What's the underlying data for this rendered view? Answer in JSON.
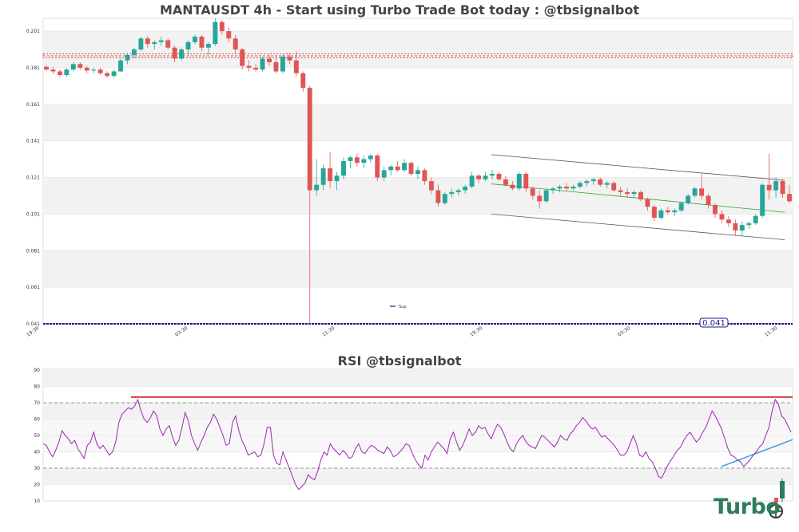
{
  "chart_data": [
    {
      "type": "candlestick",
      "title": "MANTAUSDT 4h - Start using Turbo Trade Bot today : @tbsignalbot",
      "y_ticks": [
        "0.201",
        "0.181",
        "0.161",
        "0.141",
        "0.121",
        "0.101",
        "0.081",
        "0.061",
        "0.041"
      ],
      "ylim": [
        0.041,
        0.208
      ],
      "x_ticks": [
        "19:30",
        "03:30",
        "11:30",
        "19:30",
        "03:30",
        "11:30"
      ],
      "grid": "horizontal bands",
      "legend": {
        "position": "bottom-center",
        "entries": [
          "Sup"
        ]
      },
      "price_label": "0.041",
      "resistance_level": 0.1875,
      "support_level": 0.041,
      "candles_ohlc": [
        [
          0.1815,
          0.1825,
          0.179,
          0.18
        ],
        [
          0.18,
          0.1815,
          0.1775,
          0.179
        ],
        [
          0.179,
          0.18,
          0.176,
          0.177
        ],
        [
          0.177,
          0.181,
          0.176,
          0.18
        ],
        [
          0.18,
          0.184,
          0.179,
          0.183
        ],
        [
          0.183,
          0.184,
          0.18,
          0.181
        ],
        [
          0.181,
          0.182,
          0.178,
          0.1795
        ],
        [
          0.1795,
          0.181,
          0.178,
          0.18
        ],
        [
          0.18,
          0.181,
          0.177,
          0.178
        ],
        [
          0.178,
          0.179,
          0.1755,
          0.1765
        ],
        [
          0.1765,
          0.18,
          0.1755,
          0.179
        ],
        [
          0.179,
          0.186,
          0.1785,
          0.185
        ],
        [
          0.185,
          0.189,
          0.183,
          0.188
        ],
        [
          0.188,
          0.192,
          0.186,
          0.191
        ],
        [
          0.191,
          0.198,
          0.19,
          0.197
        ],
        [
          0.197,
          0.1985,
          0.192,
          0.194
        ],
        [
          0.194,
          0.196,
          0.191,
          0.195
        ],
        [
          0.195,
          0.198,
          0.193,
          0.196
        ],
        [
          0.196,
          0.197,
          0.191,
          0.192
        ],
        [
          0.192,
          0.193,
          0.184,
          0.186
        ],
        [
          0.186,
          0.192,
          0.185,
          0.191
        ],
        [
          0.191,
          0.196,
          0.188,
          0.195
        ],
        [
          0.195,
          0.199,
          0.194,
          0.198
        ],
        [
          0.198,
          0.199,
          0.19,
          0.192
        ],
        [
          0.192,
          0.195,
          0.188,
          0.194
        ],
        [
          0.194,
          0.208,
          0.193,
          0.206
        ],
        [
          0.206,
          0.207,
          0.199,
          0.201
        ],
        [
          0.201,
          0.203,
          0.195,
          0.197
        ],
        [
          0.197,
          0.199,
          0.189,
          0.191
        ],
        [
          0.191,
          0.192,
          0.18,
          0.182
        ],
        [
          0.182,
          0.185,
          0.179,
          0.181
        ],
        [
          0.181,
          0.183,
          0.179,
          0.18
        ],
        [
          0.18,
          0.187,
          0.179,
          0.186
        ],
        [
          0.186,
          0.188,
          0.182,
          0.184
        ],
        [
          0.184,
          0.187,
          0.178,
          0.179
        ],
        [
          0.179,
          0.188,
          0.178,
          0.187
        ],
        [
          0.187,
          0.189,
          0.183,
          0.185
        ],
        [
          0.185,
          0.19,
          0.176,
          0.178
        ],
        [
          0.178,
          0.179,
          0.168,
          0.17
        ],
        [
          0.17,
          0.171,
          0.041,
          0.114
        ],
        [
          0.114,
          0.131,
          0.111,
          0.117
        ],
        [
          0.117,
          0.128,
          0.114,
          0.126
        ],
        [
          0.126,
          0.135,
          0.115,
          0.119
        ],
        [
          0.119,
          0.124,
          0.114,
          0.122
        ],
        [
          0.122,
          0.132,
          0.12,
          0.13
        ],
        [
          0.13,
          0.133,
          0.126,
          0.132
        ],
        [
          0.132,
          0.134,
          0.127,
          0.129
        ],
        [
          0.129,
          0.133,
          0.126,
          0.131
        ],
        [
          0.131,
          0.134,
          0.129,
          0.133
        ],
        [
          0.133,
          0.134,
          0.119,
          0.121
        ],
        [
          0.121,
          0.127,
          0.119,
          0.125
        ],
        [
          0.125,
          0.128,
          0.122,
          0.127
        ],
        [
          0.127,
          0.13,
          0.124,
          0.125
        ],
        [
          0.125,
          0.131,
          0.124,
          0.129
        ],
        [
          0.129,
          0.13,
          0.122,
          0.123
        ],
        [
          0.123,
          0.127,
          0.12,
          0.125
        ],
        [
          0.125,
          0.126,
          0.117,
          0.119
        ],
        [
          0.119,
          0.121,
          0.112,
          0.114
        ],
        [
          0.114,
          0.117,
          0.105,
          0.107
        ],
        [
          0.107,
          0.113,
          0.106,
          0.112
        ],
        [
          0.112,
          0.115,
          0.11,
          0.113
        ],
        [
          0.113,
          0.115,
          0.111,
          0.114
        ],
        [
          0.114,
          0.117,
          0.112,
          0.116
        ],
        [
          0.116,
          0.124,
          0.115,
          0.122
        ],
        [
          0.122,
          0.123,
          0.118,
          0.12
        ],
        [
          0.12,
          0.124,
          0.119,
          0.122
        ],
        [
          0.122,
          0.125,
          0.12,
          0.123
        ],
        [
          0.123,
          0.124,
          0.119,
          0.12
        ],
        [
          0.12,
          0.122,
          0.116,
          0.117
        ],
        [
          0.117,
          0.119,
          0.114,
          0.115
        ],
        [
          0.115,
          0.124,
          0.114,
          0.123
        ],
        [
          0.123,
          0.124,
          0.113,
          0.115
        ],
        [
          0.115,
          0.116,
          0.109,
          0.111
        ],
        [
          0.111,
          0.114,
          0.104,
          0.108
        ],
        [
          0.108,
          0.115,
          0.107,
          0.114
        ],
        [
          0.114,
          0.116,
          0.112,
          0.115
        ],
        [
          0.115,
          0.117,
          0.113,
          0.116
        ],
        [
          0.116,
          0.118,
          0.114,
          0.115
        ],
        [
          0.115,
          0.117,
          0.114,
          0.116
        ],
        [
          0.116,
          0.119,
          0.115,
          0.118
        ],
        [
          0.118,
          0.12,
          0.116,
          0.119
        ],
        [
          0.119,
          0.121,
          0.117,
          0.12
        ],
        [
          0.12,
          0.121,
          0.116,
          0.117
        ],
        [
          0.117,
          0.119,
          0.115,
          0.118
        ],
        [
          0.118,
          0.119,
          0.113,
          0.114
        ],
        [
          0.114,
          0.116,
          0.111,
          0.113
        ],
        [
          0.113,
          0.115,
          0.11,
          0.112
        ],
        [
          0.112,
          0.114,
          0.11,
          0.113
        ],
        [
          0.113,
          0.114,
          0.108,
          0.109
        ],
        [
          0.109,
          0.11,
          0.103,
          0.105
        ],
        [
          0.105,
          0.106,
          0.097,
          0.099
        ],
        [
          0.099,
          0.104,
          0.098,
          0.103
        ],
        [
          0.103,
          0.105,
          0.101,
          0.102
        ],
        [
          0.102,
          0.104,
          0.1,
          0.103
        ],
        [
          0.103,
          0.108,
          0.102,
          0.107
        ],
        [
          0.107,
          0.112,
          0.106,
          0.111
        ],
        [
          0.111,
          0.116,
          0.11,
          0.115
        ],
        [
          0.115,
          0.123,
          0.109,
          0.111
        ],
        [
          0.111,
          0.112,
          0.104,
          0.106
        ],
        [
          0.106,
          0.107,
          0.099,
          0.101
        ],
        [
          0.101,
          0.103,
          0.096,
          0.098
        ],
        [
          0.098,
          0.1,
          0.094,
          0.096
        ],
        [
          0.096,
          0.098,
          0.089,
          0.092
        ],
        [
          0.092,
          0.097,
          0.089,
          0.095
        ],
        [
          0.095,
          0.097,
          0.093,
          0.096
        ],
        [
          0.096,
          0.101,
          0.095,
          0.1
        ],
        [
          0.1,
          0.118,
          0.099,
          0.117
        ],
        [
          0.117,
          0.134,
          0.109,
          0.114
        ],
        [
          0.114,
          0.121,
          0.11,
          0.119
        ],
        [
          0.119,
          0.12,
          0.11,
          0.112
        ],
        [
          0.112,
          0.117,
          0.107,
          0.108
        ]
      ]
    },
    {
      "type": "line",
      "title": "RSI @tbsignalbot",
      "y_ticks": [
        "90",
        "80",
        "70",
        "60",
        "50",
        "40",
        "30",
        "20",
        "10"
      ],
      "ylim": [
        10,
        91
      ],
      "reference_lines": [
        70,
        30
      ],
      "series_color": "#9c27b0",
      "values": [
        45,
        44,
        40,
        37,
        41,
        46,
        53,
        50,
        48,
        45,
        47,
        42,
        39,
        36,
        44,
        46,
        52,
        45,
        42,
        44,
        41,
        38,
        40,
        46,
        58,
        63,
        65,
        67,
        66,
        68,
        72,
        65,
        60,
        58,
        61,
        65,
        62,
        54,
        50,
        54,
        56,
        49,
        44,
        47,
        55,
        64,
        59,
        50,
        45,
        41,
        46,
        50,
        55,
        58,
        63,
        60,
        55,
        50,
        44,
        45,
        58,
        62,
        53,
        47,
        43,
        38,
        39,
        40,
        37,
        38,
        45,
        55,
        55,
        38,
        33,
        32,
        40,
        35,
        30,
        25,
        20,
        17,
        19,
        21,
        26,
        24,
        23,
        28,
        35,
        40,
        38,
        45,
        42,
        40,
        38,
        41,
        39,
        36,
        37,
        42,
        45,
        40,
        39,
        42,
        44,
        43,
        41,
        40,
        39,
        43,
        41,
        37,
        38,
        40,
        42,
        45,
        44,
        39,
        35,
        32,
        30,
        38,
        35,
        40,
        43,
        46,
        44,
        42,
        39,
        48,
        52,
        46,
        41,
        44,
        49,
        54,
        50,
        52,
        56,
        54,
        55,
        51,
        48,
        53,
        57,
        55,
        51,
        46,
        42,
        40,
        45,
        48,
        50,
        46,
        44,
        43,
        42,
        46,
        50,
        49,
        47,
        45,
        43,
        46,
        50,
        48,
        47,
        51,
        53,
        56,
        58,
        61,
        59,
        56,
        54,
        55,
        52,
        49,
        50,
        48,
        46,
        44,
        41,
        38,
        38,
        40,
        45,
        50,
        45,
        38,
        37,
        40,
        36,
        34,
        30,
        25,
        24,
        28,
        32,
        35,
        38,
        41,
        43,
        47,
        50,
        52,
        49,
        46,
        48,
        52,
        55,
        60,
        65,
        62,
        58,
        54,
        48,
        42,
        38,
        37,
        35,
        34,
        31,
        33,
        35,
        38,
        40,
        43,
        45,
        50,
        55,
        65,
        72,
        69,
        62,
        60,
        56,
        52
      ]
    }
  ],
  "branding": {
    "logo_text": "Turbo"
  },
  "colors": {
    "up": "#26a69a",
    "down": "#e05555",
    "rsi": "#9c27b0",
    "resistance": "#d9534f",
    "support": "#1a1a8c",
    "channel": "#555555",
    "midline": "#2ca02c",
    "rsi_resistance": "#cc0000",
    "rsi_support": "#3b9ae1"
  }
}
